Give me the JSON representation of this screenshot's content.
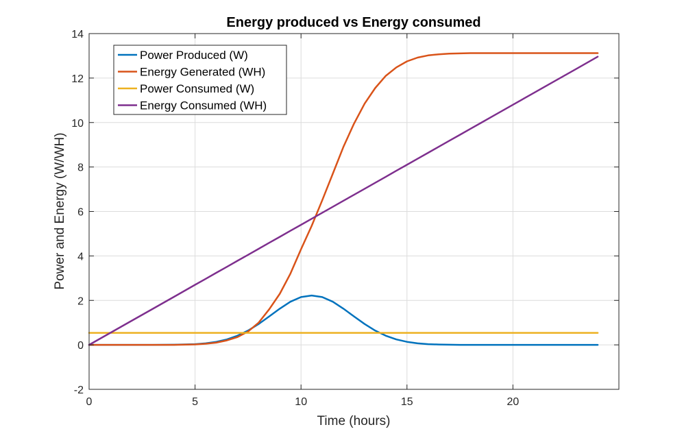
{
  "chart_data": {
    "type": "line",
    "title": "Energy produced vs Energy consumed",
    "xlabel": "Time (hours)",
    "ylabel": "Power and Energy (W/WH)",
    "xlim": [
      0,
      25
    ],
    "ylim": [
      -2,
      14
    ],
    "xticks": [
      0,
      5,
      10,
      15,
      20
    ],
    "yticks": [
      -2,
      0,
      2,
      4,
      6,
      8,
      10,
      12,
      14
    ],
    "grid": true,
    "legend_position": "top-left",
    "x": [
      0,
      1,
      2,
      3,
      4,
      5,
      5.5,
      6,
      6.5,
      7,
      7.5,
      8,
      8.5,
      9,
      9.5,
      10,
      10.5,
      11,
      11.5,
      12,
      12.5,
      13,
      13.5,
      14,
      14.5,
      15,
      15.5,
      16,
      16.5,
      17,
      17.5,
      18,
      18.5,
      19,
      20,
      21,
      22,
      23,
      24
    ],
    "series": [
      {
        "name": "Power Produced (W)",
        "color": "#0072BD",
        "values": [
          0,
          0,
          0,
          0.001,
          0.006,
          0.033,
          0.069,
          0.135,
          0.245,
          0.411,
          0.643,
          0.939,
          1.28,
          1.63,
          1.94,
          2.15,
          2.22,
          2.15,
          1.94,
          1.63,
          1.28,
          0.939,
          0.643,
          0.411,
          0.245,
          0.135,
          0.069,
          0.033,
          0.015,
          0.006,
          0.002,
          0.001,
          0,
          0,
          0,
          0,
          0,
          0,
          0
        ]
      },
      {
        "name": "Energy Generated (WH)",
        "color": "#D95319",
        "values": [
          0,
          0,
          0,
          0,
          0,
          0.02,
          0.05,
          0.1,
          0.2,
          0.35,
          0.6,
          1.0,
          1.6,
          2.3,
          3.2,
          4.3,
          5.35,
          6.5,
          7.7,
          8.9,
          9.95,
          10.85,
          11.55,
          12.1,
          12.48,
          12.75,
          12.92,
          13.02,
          13.07,
          13.1,
          13.11,
          13.12,
          13.12,
          13.12,
          13.12,
          13.12,
          13.12,
          13.12,
          13.12
        ]
      },
      {
        "name": "Power Consumed (W)",
        "color": "#EDB120",
        "values": [
          0.54,
          0.54,
          0.54,
          0.54,
          0.54,
          0.54,
          0.54,
          0.54,
          0.54,
          0.54,
          0.54,
          0.54,
          0.54,
          0.54,
          0.54,
          0.54,
          0.54,
          0.54,
          0.54,
          0.54,
          0.54,
          0.54,
          0.54,
          0.54,
          0.54,
          0.54,
          0.54,
          0.54,
          0.54,
          0.54,
          0.54,
          0.54,
          0.54,
          0.54,
          0.54,
          0.54,
          0.54,
          0.54,
          0.54
        ]
      },
      {
        "name": "Energy Consumed (WH)",
        "color": "#7E2F8E",
        "values": [
          0,
          0.54,
          1.08,
          1.62,
          2.16,
          2.7,
          2.97,
          3.24,
          3.51,
          3.78,
          4.05,
          4.32,
          4.59,
          4.86,
          5.13,
          5.4,
          5.67,
          5.94,
          6.21,
          6.48,
          6.75,
          7.02,
          7.29,
          7.56,
          7.83,
          8.1,
          8.37,
          8.64,
          8.91,
          9.18,
          9.45,
          9.72,
          9.99,
          10.26,
          10.8,
          11.34,
          11.88,
          12.42,
          12.96
        ]
      }
    ]
  }
}
